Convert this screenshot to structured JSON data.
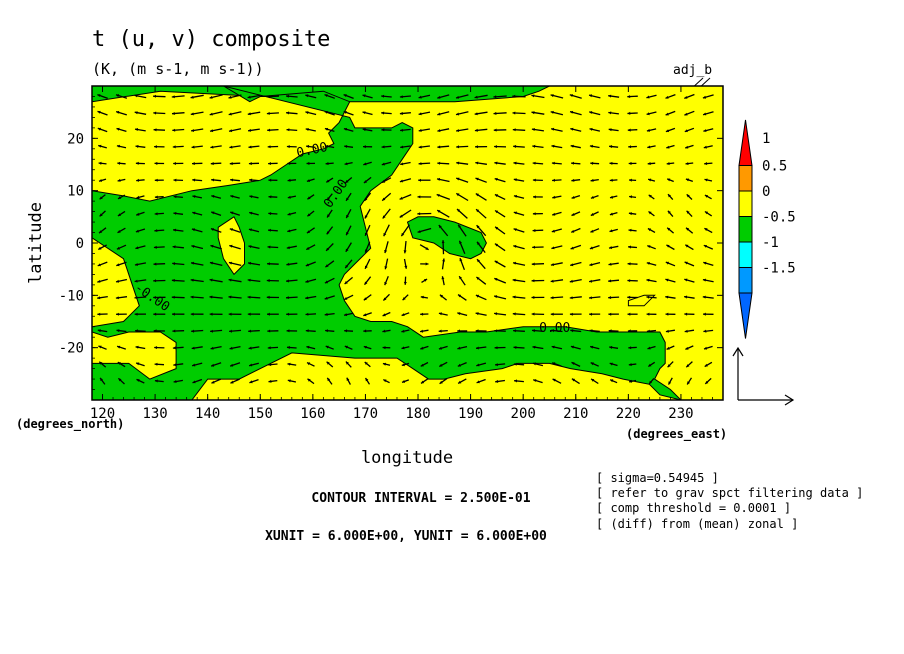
{
  "title": "t (u, v) composite",
  "subtitle": "(K, (m s-1, m s-1))",
  "tag": "adj_b",
  "colors": {
    "positive": "#ffff00",
    "negative": "#00cc00",
    "contour": "#000000",
    "arrow": "#000000"
  },
  "chart_data": {
    "type": "heatmap",
    "title": "t (u, v) composite",
    "xlabel": "longitude",
    "ylabel": "latitude",
    "x_unit_label": "(degrees_east)",
    "y_unit_label": "(degrees_north)",
    "xlim": [
      118,
      238
    ],
    "ylim": [
      -30,
      30
    ],
    "x_ticks": [
      {
        "value": 120,
        "label": "120"
      },
      {
        "value": 130,
        "label": "130"
      },
      {
        "value": 140,
        "label": "140"
      },
      {
        "value": 150,
        "label": "150"
      },
      {
        "value": 160,
        "label": "160"
      },
      {
        "value": 170,
        "label": "170"
      },
      {
        "value": 180,
        "label": "180"
      },
      {
        "value": 190,
        "label": "190"
      },
      {
        "value": 200,
        "label": "200"
      },
      {
        "value": 210,
        "label": "210"
      },
      {
        "value": 220,
        "label": "220"
      },
      {
        "value": 230,
        "label": "230"
      }
    ],
    "y_ticks": [
      {
        "value": 20,
        "label": "20"
      },
      {
        "value": 10,
        "label": "10"
      },
      {
        "value": 0,
        "label": "0"
      },
      {
        "value": -10,
        "label": "-10"
      },
      {
        "value": -20,
        "label": "-20"
      }
    ],
    "contour_labels": [
      {
        "text": "0.00",
        "lon": 160,
        "lat": 17,
        "rotate": -12
      },
      {
        "text": "0.00",
        "lon": 165,
        "lat": 9,
        "rotate": -55
      },
      {
        "text": "-0.00",
        "lon": 129,
        "lat": -11,
        "rotate": 35
      },
      {
        "text": "0.00",
        "lon": 206,
        "lat": -17,
        "rotate": 0
      }
    ],
    "colorbar": {
      "levels": [
        -1.5,
        -1,
        -0.5,
        0,
        0.5,
        1
      ],
      "labels": [
        "1",
        "0.5",
        "0",
        "-0.5",
        "-1",
        "-1.5"
      ],
      "colors": [
        "#ff0000",
        "#ff9900",
        "#ffff00",
        "#00cc00",
        "#00ffff",
        "#0099ff",
        "#0066ff"
      ]
    },
    "shaded_regions_negative": [
      [
        [
          118,
          27
        ],
        [
          131,
          29
        ],
        [
          150,
          28
        ],
        [
          160,
          28
        ],
        [
          162,
          27
        ],
        [
          175,
          27
        ],
        [
          187,
          27
        ],
        [
          200,
          28
        ],
        [
          203,
          29
        ],
        [
          205,
          30
        ],
        [
          118,
          30
        ]
      ],
      [
        [
          143,
          30
        ],
        [
          148,
          27
        ],
        [
          150,
          28
        ],
        [
          162,
          29
        ],
        [
          167,
          27
        ],
        [
          165,
          23
        ],
        [
          163,
          21
        ],
        [
          164,
          19
        ],
        [
          162,
          18
        ],
        [
          158,
          17
        ],
        [
          152,
          13
        ],
        [
          150,
          12
        ],
        [
          144,
          11
        ],
        [
          137,
          10
        ],
        [
          129,
          8
        ],
        [
          124,
          9
        ],
        [
          118,
          10
        ],
        [
          118,
          1
        ],
        [
          124,
          -3
        ],
        [
          127,
          -12
        ],
        [
          124,
          -15
        ],
        [
          118,
          -16
        ],
        [
          118,
          -17
        ],
        [
          121,
          -18
        ],
        [
          125,
          -17
        ],
        [
          131,
          -17
        ],
        [
          134,
          -19
        ],
        [
          134,
          -24
        ],
        [
          129,
          -26
        ],
        [
          125,
          -23
        ],
        [
          118,
          -23
        ],
        [
          118,
          -30
        ],
        [
          137,
          -30
        ],
        [
          140,
          -26
        ],
        [
          146,
          -26
        ],
        [
          156,
          -21
        ],
        [
          168,
          -22
        ],
        [
          176,
          -22
        ],
        [
          179,
          -24
        ],
        [
          182,
          -26
        ],
        [
          185,
          -26
        ],
        [
          189,
          -25
        ],
        [
          196,
          -24
        ],
        [
          199,
          -23
        ],
        [
          205,
          -23
        ],
        [
          209,
          -24
        ],
        [
          215,
          -25
        ],
        [
          219,
          -26
        ],
        [
          224,
          -27
        ],
        [
          226,
          -29
        ],
        [
          230,
          -30
        ],
        [
          228,
          -28
        ],
        [
          225,
          -26
        ],
        [
          226,
          -24
        ],
        [
          227,
          -23
        ],
        [
          227,
          -19
        ],
        [
          226,
          -17
        ],
        [
          220,
          -17
        ],
        [
          214,
          -17
        ],
        [
          208,
          -16
        ],
        [
          200,
          -16
        ],
        [
          193,
          -17
        ],
        [
          188,
          -17
        ],
        [
          181,
          -18
        ],
        [
          178,
          -16
        ],
        [
          175,
          -15
        ],
        [
          171,
          -15
        ],
        [
          168,
          -14
        ],
        [
          166,
          -11
        ],
        [
          165,
          -8
        ],
        [
          166,
          -6
        ],
        [
          168,
          -4
        ],
        [
          171,
          -1
        ],
        [
          170,
          3
        ],
        [
          169,
          7
        ],
        [
          171,
          10
        ],
        [
          175,
          13
        ],
        [
          177,
          16
        ],
        [
          179,
          19
        ],
        [
          179,
          22
        ],
        [
          177,
          23
        ],
        [
          175,
          22
        ],
        [
          172,
          22
        ],
        [
          168,
          22
        ],
        [
          167,
          24
        ]
      ],
      [
        [
          179,
          1
        ],
        [
          178,
          4
        ],
        [
          180,
          5
        ],
        [
          183,
          5
        ],
        [
          187,
          4
        ],
        [
          192,
          2
        ],
        [
          193,
          0
        ],
        [
          192,
          -2
        ],
        [
          190,
          -3
        ],
        [
          186,
          -2
        ],
        [
          183,
          0
        ]
      ]
    ],
    "shaded_regions_positive": [
      [
        [
          145,
          5
        ],
        [
          142,
          3
        ],
        [
          142,
          1
        ],
        [
          143,
          -3
        ],
        [
          145,
          -6
        ],
        [
          147,
          -4
        ],
        [
          147,
          0
        ],
        [
          146,
          3
        ]
      ],
      [
        [
          220,
          -11
        ],
        [
          223,
          -10
        ],
        [
          225,
          -10
        ],
        [
          223,
          -12
        ],
        [
          220,
          -12
        ]
      ]
    ],
    "vector_reference": {
      "u": 6.0,
      "v": 6.0
    },
    "footer_lines": [
      "CONTOUR INTERVAL = 2.500E-01",
      "XUNIT = 6.000E+00, YUNIT = 6.000E+00"
    ],
    "annotations": [
      "[ sigma=0.54945 ]",
      "[ refer to grav spct filtering data ]",
      "[ comp threshold = 0.0001 ]",
      "[ (diff) from (mean) zonal ]"
    ]
  }
}
